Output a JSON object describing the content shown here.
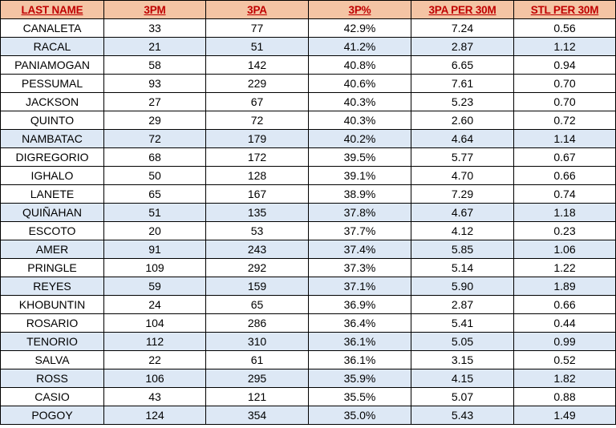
{
  "colors": {
    "header_bg": "#f4c4a4",
    "header_text": "#c00000",
    "shaded_row_bg": "#dde8f5",
    "row_bg": "#ffffff",
    "border": "#000000"
  },
  "table": {
    "headers": [
      "LAST NAME",
      "3PM",
      "3PA",
      "3P%",
      "3PA PER 30M",
      "STL PER 30M"
    ],
    "shaded_rows": [
      1,
      6,
      10,
      12,
      14,
      17,
      19,
      21
    ],
    "rows": [
      [
        "CANALETA",
        "33",
        "77",
        "42.9%",
        "7.24",
        "0.56"
      ],
      [
        "RACAL",
        "21",
        "51",
        "41.2%",
        "2.87",
        "1.12"
      ],
      [
        "PANIAMOGAN",
        "58",
        "142",
        "40.8%",
        "6.65",
        "0.94"
      ],
      [
        "PESSUMAL",
        "93",
        "229",
        "40.6%",
        "7.61",
        "0.70"
      ],
      [
        "JACKSON",
        "27",
        "67",
        "40.3%",
        "5.23",
        "0.70"
      ],
      [
        "QUINTO",
        "29",
        "72",
        "40.3%",
        "2.60",
        "0.72"
      ],
      [
        "NAMBATAC",
        "72",
        "179",
        "40.2%",
        "4.64",
        "1.14"
      ],
      [
        "DIGREGORIO",
        "68",
        "172",
        "39.5%",
        "5.77",
        "0.67"
      ],
      [
        "IGHALO",
        "50",
        "128",
        "39.1%",
        "4.70",
        "0.66"
      ],
      [
        "LANETE",
        "65",
        "167",
        "38.9%",
        "7.29",
        "0.74"
      ],
      [
        "QUIÑAHAN",
        "51",
        "135",
        "37.8%",
        "4.67",
        "1.18"
      ],
      [
        "ESCOTO",
        "20",
        "53",
        "37.7%",
        "4.12",
        "0.23"
      ],
      [
        "AMER",
        "91",
        "243",
        "37.4%",
        "5.85",
        "1.06"
      ],
      [
        "PRINGLE",
        "109",
        "292",
        "37.3%",
        "5.14",
        "1.22"
      ],
      [
        "REYES",
        "59",
        "159",
        "37.1%",
        "5.90",
        "1.89"
      ],
      [
        "KHOBUNTIN",
        "24",
        "65",
        "36.9%",
        "2.87",
        "0.66"
      ],
      [
        "ROSARIO",
        "104",
        "286",
        "36.4%",
        "5.41",
        "0.44"
      ],
      [
        "TENORIO",
        "112",
        "310",
        "36.1%",
        "5.05",
        "0.99"
      ],
      [
        "SALVA",
        "22",
        "61",
        "36.1%",
        "3.15",
        "0.52"
      ],
      [
        "ROSS",
        "106",
        "295",
        "35.9%",
        "4.15",
        "1.82"
      ],
      [
        "CASIO",
        "43",
        "121",
        "35.5%",
        "5.07",
        "0.88"
      ],
      [
        "POGOY",
        "124",
        "354",
        "35.0%",
        "5.43",
        "1.49"
      ]
    ]
  }
}
